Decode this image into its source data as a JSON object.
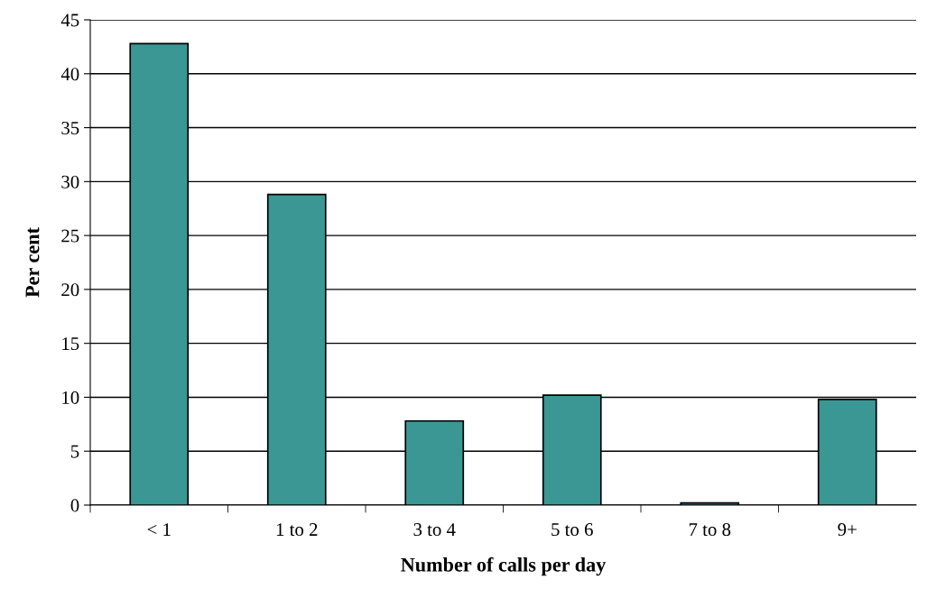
{
  "chart_data": {
    "type": "bar",
    "xlabel": "Number of calls per day",
    "ylabel": "Per cent",
    "categories": [
      "< 1",
      "1 to 2",
      "3 to 4",
      "5 to 6",
      "7 to 8",
      "9+"
    ],
    "values": [
      42.8,
      28.8,
      7.8,
      10.2,
      0.2,
      9.8
    ],
    "color": "#3a9794",
    "ylim": [
      0,
      45
    ],
    "yticks": [
      0,
      5,
      10,
      15,
      20,
      25,
      30,
      35,
      40,
      45
    ],
    "grid": "y"
  }
}
